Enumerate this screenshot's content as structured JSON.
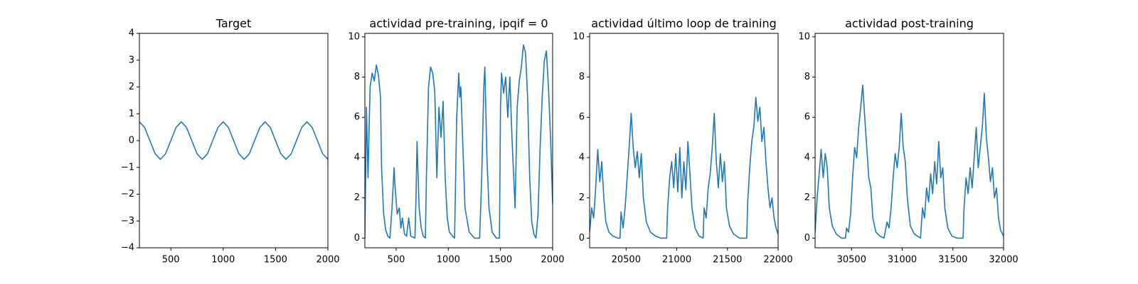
{
  "chart_data": [
    {
      "type": "line",
      "title": "Target",
      "color": "#1f77b4",
      "x": [
        200,
        250,
        300,
        350,
        400,
        450,
        500,
        550,
        600,
        650,
        700,
        750,
        800,
        850,
        900,
        950,
        1000,
        1050,
        1100,
        1150,
        1200,
        1250,
        1300,
        1350,
        1400,
        1450,
        1500,
        1550,
        1600,
        1650,
        1700,
        1750,
        1800,
        1850,
        1900,
        1950,
        2000
      ],
      "values": [
        0.7,
        0.49,
        0,
        -0.49,
        -0.7,
        -0.49,
        0,
        0.49,
        0.7,
        0.49,
        0,
        -0.49,
        -0.7,
        -0.49,
        0,
        0.49,
        0.7,
        0.49,
        0,
        -0.49,
        -0.7,
        -0.49,
        0,
        0.49,
        0.7,
        0.49,
        0,
        -0.49,
        -0.7,
        -0.49,
        0,
        0.49,
        0.7,
        0.49,
        0,
        -0.49,
        -0.7
      ],
      "xlim": [
        200,
        2000
      ],
      "xticks": [
        500,
        1000,
        1500,
        2000
      ],
      "ylim": [
        -4,
        4
      ],
      "yticks": [
        {
          "value": -4,
          "label": "−4"
        },
        {
          "value": -3,
          "label": "−3"
        },
        {
          "value": -2,
          "label": "−2"
        },
        {
          "value": -1,
          "label": "−1"
        },
        0,
        1,
        2,
        3,
        4
      ]
    },
    {
      "type": "line",
      "title": "actividad pre-training, ipqif = 0",
      "color": "#1f77b4",
      "x": [
        200,
        215,
        230,
        250,
        270,
        290,
        310,
        330,
        350,
        360,
        380,
        400,
        420,
        440,
        460,
        480,
        490,
        510,
        530,
        545,
        560,
        580,
        600,
        620,
        640,
        680,
        690,
        700,
        720,
        740,
        760,
        780,
        790,
        810,
        830,
        850,
        870,
        890,
        910,
        930,
        950,
        970,
        990,
        1010,
        1040,
        1060,
        1080,
        1100,
        1110,
        1120,
        1140,
        1160,
        1200,
        1250,
        1300,
        1320,
        1340,
        1350,
        1370,
        1390,
        1420,
        1460,
        1490,
        1500,
        1510,
        1530,
        1550,
        1570,
        1590,
        1610,
        1640,
        1660,
        1680,
        1700,
        1720,
        1740,
        1760,
        1780,
        1800,
        1820,
        1840,
        1860,
        1880,
        1900,
        1920,
        1940,
        1960,
        1980,
        2000
      ],
      "values": [
        0,
        6.5,
        3,
        7.5,
        8.2,
        7.8,
        8.6,
        8.1,
        7,
        3.5,
        1.2,
        0.4,
        0.1,
        0,
        1.5,
        3.5,
        2.5,
        1.2,
        1.5,
        0.5,
        1,
        0.2,
        0.1,
        1,
        0.1,
        0,
        2,
        4.8,
        1.5,
        0.5,
        0.1,
        0,
        3,
        7.5,
        8.5,
        8.2,
        7.3,
        3,
        6.5,
        5,
        6.8,
        3,
        1,
        0.3,
        0.1,
        0,
        6,
        8.2,
        7,
        7.5,
        4.5,
        1.5,
        0.3,
        0,
        0,
        3,
        7.5,
        8.5,
        4,
        1.5,
        0.3,
        0,
        0,
        6.5,
        8.2,
        7.2,
        8,
        6,
        8,
        5,
        1.5,
        6.5,
        7.8,
        8.5,
        9.6,
        9.2,
        7,
        3,
        0.8,
        0.2,
        0,
        1.2,
        4.5,
        7,
        8.8,
        9.3,
        7.5,
        5,
        1.7
      ],
      "xlim": [
        200,
        2000
      ],
      "xticks": [
        500,
        1000,
        1500,
        2000
      ],
      "ylim": [
        -0.48,
        10.17
      ],
      "yticks": [
        0,
        2,
        4,
        6,
        8,
        10
      ]
    },
    {
      "type": "line",
      "title": "actividad último loop de training",
      "color": "#1f77b4",
      "x": [
        20140,
        20160,
        20180,
        20200,
        20220,
        20240,
        20260,
        20280,
        20300,
        20330,
        20370,
        20420,
        20440,
        20450,
        20470,
        20490,
        20510,
        20530,
        20550,
        20570,
        20590,
        20610,
        20630,
        20650,
        20670,
        20700,
        20740,
        20790,
        20840,
        20900,
        20910,
        20930,
        20950,
        20970,
        20990,
        21010,
        21030,
        21050,
        21070,
        21090,
        21110,
        21130,
        21150,
        21180,
        21220,
        21260,
        21270,
        21290,
        21310,
        21330,
        21350,
        21370,
        21390,
        21410,
        21430,
        21450,
        21470,
        21490,
        21520,
        21560,
        21620,
        21690,
        21700,
        21720,
        21740,
        21760,
        21780,
        21800,
        21820,
        21840,
        21860,
        21880,
        21900,
        21920,
        21940,
        21960,
        21980,
        22000
      ],
      "values": [
        0.3,
        1.5,
        1,
        2.5,
        4.4,
        2.8,
        3.8,
        2,
        0.8,
        0.3,
        0.1,
        0,
        0,
        1.3,
        0.5,
        1.5,
        3,
        4.5,
        6.2,
        4.5,
        3.5,
        4.3,
        3,
        4.2,
        2,
        0.8,
        0.3,
        0.1,
        0,
        0,
        1.5,
        3,
        3.8,
        2.5,
        4.2,
        2.3,
        4.5,
        2,
        3.8,
        2.4,
        4.8,
        3.2,
        1.5,
        0.5,
        0.1,
        0,
        1.5,
        1,
        2.5,
        3.2,
        4.5,
        6.2,
        3.8,
        2.5,
        4.2,
        2.8,
        3.8,
        1.5,
        0.6,
        0.2,
        0,
        0,
        1.8,
        3.5,
        4.8,
        5.5,
        7,
        5.8,
        6.5,
        4.8,
        5.5,
        3.8,
        2.5,
        1.5,
        2,
        1,
        0.5,
        0.2
      ],
      "xlim": [
        20140,
        22000
      ],
      "xticks": [
        20500,
        21000,
        21500,
        22000
      ],
      "ylim": [
        -0.48,
        10.17
      ],
      "yticks": [
        0,
        2,
        4,
        6,
        8,
        10
      ]
    },
    {
      "type": "line",
      "title": "actividad post-training",
      "color": "#1f77b4",
      "x": [
        30140,
        30160,
        30180,
        30200,
        30220,
        30240,
        30260,
        30280,
        30310,
        30350,
        30400,
        30440,
        30450,
        30470,
        30490,
        30510,
        30530,
        30550,
        30570,
        30590,
        30610,
        30630,
        30650,
        30670,
        30690,
        30710,
        30740,
        30780,
        30820,
        30850,
        30870,
        30890,
        30910,
        30930,
        30950,
        30970,
        30990,
        31010,
        31030,
        31050,
        31080,
        31120,
        31180,
        31200,
        31220,
        31240,
        31260,
        31280,
        31300,
        31320,
        31340,
        31360,
        31380,
        31400,
        31420,
        31450,
        31490,
        31540,
        31600,
        31610,
        31630,
        31650,
        31670,
        31690,
        31710,
        31730,
        31750,
        31770,
        31790,
        31810,
        31830,
        31850,
        31870,
        31890,
        31910,
        31930,
        31950,
        31970,
        32000
      ],
      "values": [
        0.3,
        2,
        3.2,
        4.4,
        3,
        4.2,
        3.5,
        1.5,
        0.6,
        0.2,
        0,
        0,
        0.5,
        0.3,
        1.2,
        3,
        4.5,
        4,
        5.5,
        6.5,
        7.6,
        6,
        4.5,
        3,
        2.5,
        1,
        0.3,
        0.1,
        0,
        0.8,
        0.5,
        1.5,
        3,
        4.2,
        3.5,
        4.5,
        6.2,
        4.5,
        3.8,
        2,
        0.6,
        0.2,
        0,
        1.5,
        1,
        2.5,
        1.8,
        3.2,
        2.2,
        3.8,
        2.7,
        4.8,
        3,
        3.5,
        1.5,
        0.5,
        0.1,
        0,
        0,
        1.5,
        3,
        2.2,
        3.5,
        2.5,
        4,
        5.5,
        3.5,
        4.5,
        5.5,
        7.2,
        5,
        4,
        2.8,
        3.5,
        2,
        2.5,
        1,
        0.4,
        0.1
      ],
      "xlim": [
        30140,
        32000
      ],
      "xticks": [
        30500,
        31000,
        31500,
        32000
      ],
      "ylim": [
        -0.48,
        10.17
      ],
      "yticks": [
        0,
        2,
        4,
        6,
        8,
        10
      ]
    }
  ]
}
